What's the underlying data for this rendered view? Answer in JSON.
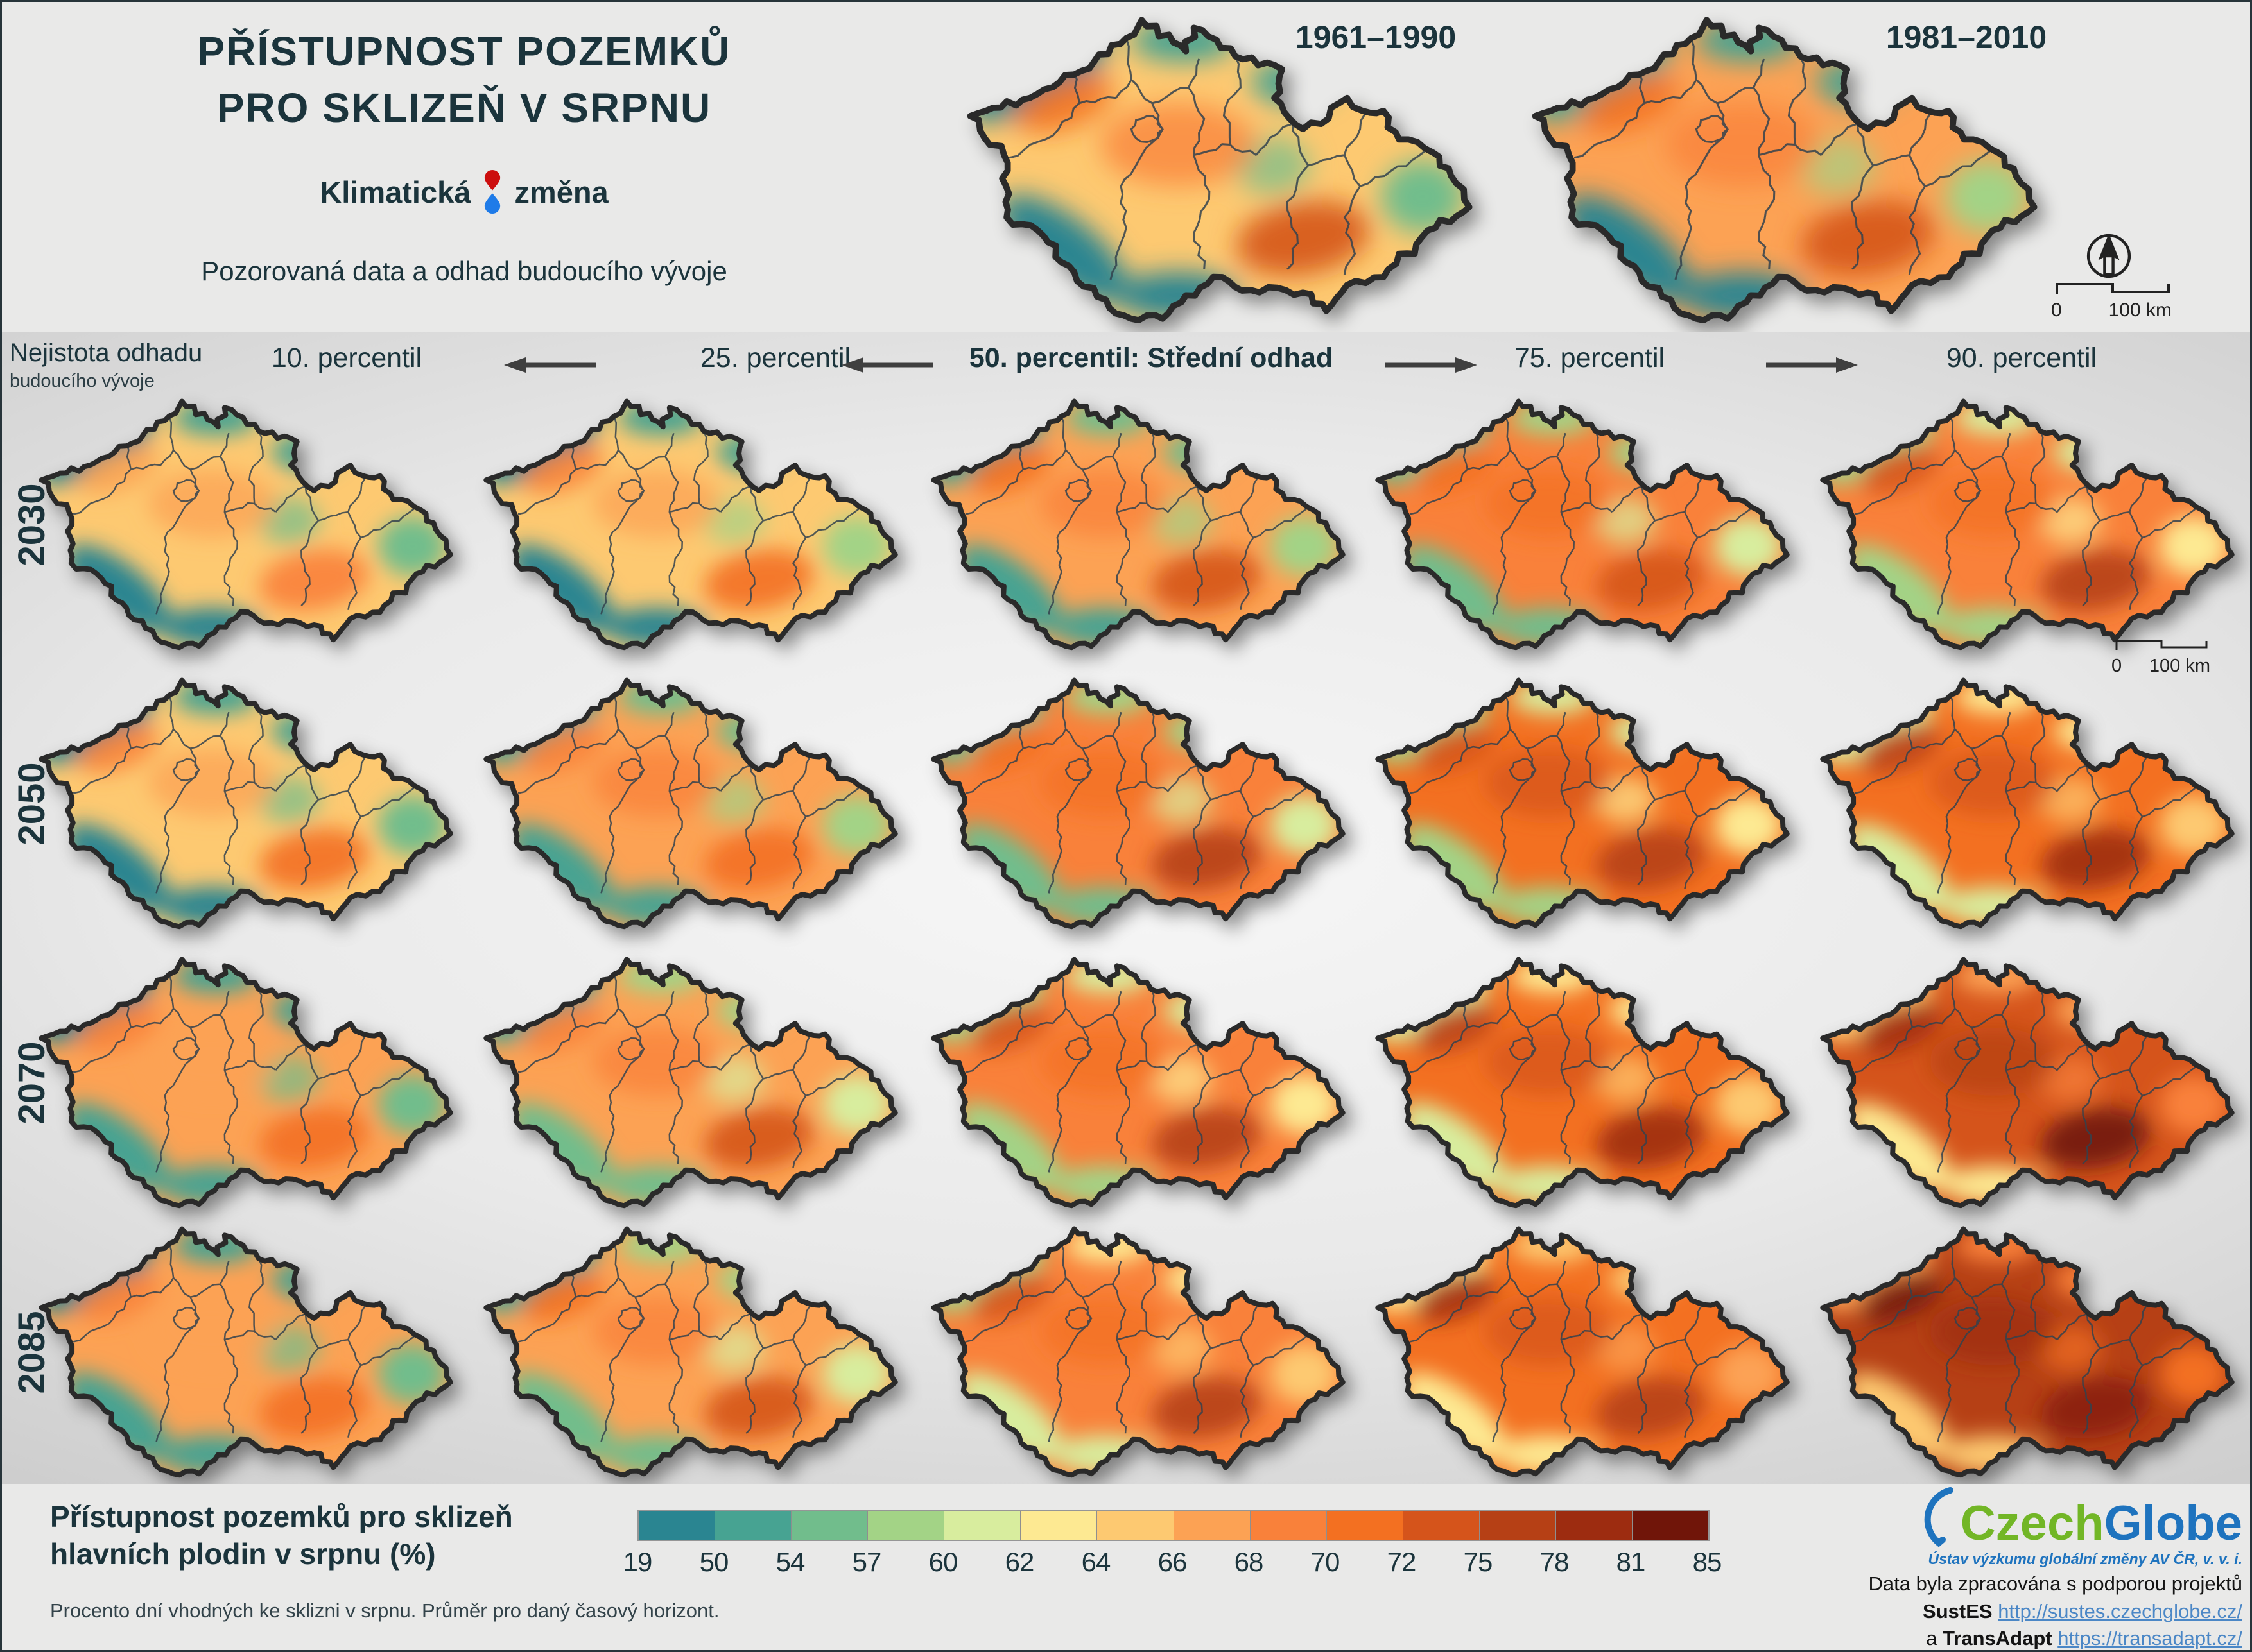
{
  "header": {
    "title_line1": "PŘÍSTUPNOST POZEMKŮ",
    "title_line2": "PRO SKLIZEŇ V SRPNU",
    "logo": {
      "part1": "Klimatická",
      "part2": "změna",
      "drop_red": "#cc0e0e",
      "drop_blue": "#1f7be8"
    },
    "subtitle": "Pozorovaná data a odhad budoucího vývoje",
    "reference_maps": [
      {
        "label": "1961–1990",
        "map": "ref1961"
      },
      {
        "label": "1981–2010",
        "map": "ref1981"
      }
    ],
    "scalebar": {
      "zero": "0",
      "hundred": "100 km"
    }
  },
  "matrix": {
    "uncertainty_label_line1": "Nejistota odhadu",
    "uncertainty_label_line2": "budoucího vývoje",
    "column_headers": [
      "10. percentil",
      "25. percentil",
      "50. percentil: Střední odhad",
      "75. percentil",
      "90. percentil"
    ],
    "arrow_directions": [
      "left",
      "left",
      "right",
      "right"
    ],
    "rows": [
      "2030",
      "2050",
      "2070",
      "2085"
    ],
    "scalebar": {
      "zero": "0",
      "hundred": "100 km"
    }
  },
  "legend": {
    "title_line1": "Přístupnost pozemků pro sklizeň",
    "title_line2": "hlavních plodin v srpnu (%)",
    "note": "Procento dní vhodných ke sklizni v srpnu. Průměr pro daný časový horizont.",
    "tick_labels": [
      "19",
      "50",
      "54",
      "57",
      "60",
      "62",
      "64",
      "66",
      "68",
      "70",
      "72",
      "75",
      "78",
      "81",
      "85"
    ],
    "segment_colors": [
      "#2a8591",
      "#47a392",
      "#71bd8c",
      "#a3d386",
      "#d8ed9e",
      "#fde992",
      "#fdc971",
      "#fca254",
      "#f9813a",
      "#f37021",
      "#d5541b",
      "#b64015",
      "#9d2c10",
      "#701509"
    ]
  },
  "footer": {
    "credit_line": "Data byla zpracována s podporou projektů",
    "sustes_label": "SustES",
    "sustes_url": "http://sustes.czechglobe.cz/",
    "and_label": "a",
    "transadapt_label": "TransAdapt",
    "transadapt_url": "https://transadapt.cz/",
    "czechglobe": {
      "part1": "Czech",
      "part2": "Globe",
      "caption": "Ústav výzkumu globální změny AV ČR, v. v. i.",
      "green": "#72b626",
      "blue": "#1e73be"
    }
  },
  "maps": {
    "outline_color": "#2a2a2a",
    "region_line_color": "#33424d",
    "ref1961": [
      "#fdc971",
      "#2a8591",
      "#47a392",
      "#71bd8c",
      "#2a8591",
      "#f37021",
      "#d5541b",
      "#f9813a"
    ],
    "ref1981": [
      "#fca254",
      "#47a392",
      "#47a392",
      "#a3d386",
      "#2a8591",
      "#f37021",
      "#d5541b",
      "#f9813a"
    ],
    "grid": [
      [
        [
          "#fdc971",
          "#2a8591",
          "#47a392",
          "#71bd8c",
          "#2a8591",
          "#fca254",
          "#f9813a",
          "#fca254"
        ],
        [
          "#fdc971",
          "#2a8591",
          "#47a392",
          "#a3d386",
          "#2a8591",
          "#f9813a",
          "#f37021",
          "#fca254"
        ],
        [
          "#fca254",
          "#47a392",
          "#71bd8c",
          "#a3d386",
          "#47a392",
          "#f37021",
          "#d5541b",
          "#f9813a"
        ],
        [
          "#f9813a",
          "#71bd8c",
          "#a3d386",
          "#d8ed9e",
          "#71bd8c",
          "#f37021",
          "#d5541b",
          "#f37021"
        ],
        [
          "#f9813a",
          "#a3d386",
          "#d8ed9e",
          "#fde992",
          "#a3d386",
          "#d5541b",
          "#b64015",
          "#f37021"
        ]
      ],
      [
        [
          "#fdc971",
          "#2a8591",
          "#47a392",
          "#71bd8c",
          "#2a8591",
          "#f9813a",
          "#f37021",
          "#fca254"
        ],
        [
          "#fca254",
          "#47a392",
          "#71bd8c",
          "#a3d386",
          "#47a392",
          "#f9813a",
          "#f37021",
          "#f9813a"
        ],
        [
          "#f9813a",
          "#71bd8c",
          "#a3d386",
          "#d8ed9e",
          "#71bd8c",
          "#f37021",
          "#b64015",
          "#f37021"
        ],
        [
          "#f37021",
          "#a3d386",
          "#d8ed9e",
          "#fde992",
          "#a3d386",
          "#d5541b",
          "#b64015",
          "#d5541b"
        ],
        [
          "#f37021",
          "#d8ed9e",
          "#fde992",
          "#fdc971",
          "#d8ed9e",
          "#b64015",
          "#9d2c10",
          "#d5541b"
        ]
      ],
      [
        [
          "#fca254",
          "#2a8591",
          "#47a392",
          "#71bd8c",
          "#47a392",
          "#f9813a",
          "#f37021",
          "#fca254"
        ],
        [
          "#fca254",
          "#47a392",
          "#a3d386",
          "#d8ed9e",
          "#71bd8c",
          "#f9813a",
          "#d5541b",
          "#f9813a"
        ],
        [
          "#f9813a",
          "#a3d386",
          "#d8ed9e",
          "#fde992",
          "#a3d386",
          "#d5541b",
          "#b64015",
          "#f37021"
        ],
        [
          "#f37021",
          "#d8ed9e",
          "#fde992",
          "#fdc971",
          "#d8ed9e",
          "#b64015",
          "#9d2c10",
          "#d5541b"
        ],
        [
          "#d5541b",
          "#fdc971",
          "#fca254",
          "#f9813a",
          "#fde992",
          "#9d2c10",
          "#701509",
          "#b64015"
        ]
      ],
      [
        [
          "#fca254",
          "#2a8591",
          "#47a392",
          "#71bd8c",
          "#47a392",
          "#f9813a",
          "#f37021",
          "#fca254"
        ],
        [
          "#fca254",
          "#47a392",
          "#a3d386",
          "#d8ed9e",
          "#71bd8c",
          "#f37021",
          "#d5541b",
          "#f9813a"
        ],
        [
          "#f9813a",
          "#a3d386",
          "#fde992",
          "#fdc971",
          "#d8ed9e",
          "#d5541b",
          "#b64015",
          "#f37021"
        ],
        [
          "#f37021",
          "#fde992",
          "#fdc971",
          "#fca254",
          "#fde992",
          "#9d2c10",
          "#b64015",
          "#d5541b"
        ],
        [
          "#b64015",
          "#fca254",
          "#f9813a",
          "#f37021",
          "#fdc971",
          "#701509",
          "#8a1f0c",
          "#9d2c10"
        ]
      ]
    ]
  }
}
